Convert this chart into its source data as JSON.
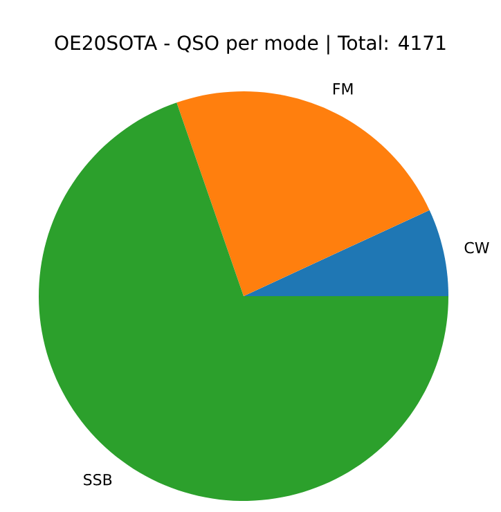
{
  "chart_data": {
    "type": "pie",
    "title": "OE20SOTA - QSO per mode | Total: 4171",
    "categories": [
      "CW",
      "FM",
      "SSB"
    ],
    "values": [
      6.9,
      23.4,
      69.7
    ],
    "colors": [
      "#1f77b4",
      "#ff7f0e",
      "#2ca02c"
    ]
  }
}
